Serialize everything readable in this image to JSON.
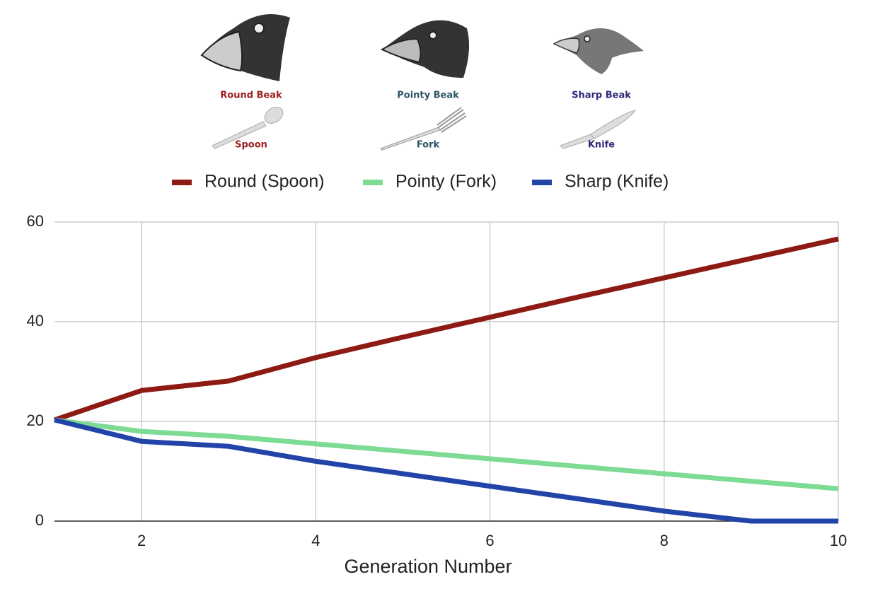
{
  "illustrations": [
    {
      "beak": "Round Beak",
      "utensil": "Spoon",
      "color": "#9b2020"
    },
    {
      "beak": "Pointy Beak",
      "utensil": "Fork",
      "color": "#2c5566"
    },
    {
      "beak": "Sharp Beak",
      "utensil": "Knife",
      "color": "#2e2a78"
    }
  ],
  "chart_data": {
    "type": "line",
    "x_label": "Generation Number",
    "x": [
      1,
      2,
      3,
      4,
      5,
      6,
      7,
      8,
      9,
      10
    ],
    "series": [
      {
        "name": "Round (Spoon)",
        "color": "#8e1a14",
        "values": [
          20.3,
          26.2,
          28.1,
          32.8,
          36.9,
          40.9,
          44.9,
          48.8,
          52.7,
          56.6
        ]
      },
      {
        "name": "Pointy (Fork)",
        "color": "#7ddb94",
        "values": [
          20.3,
          18,
          17,
          15.5,
          14,
          12.5,
          11,
          9.5,
          8,
          6.5
        ]
      },
      {
        "name": "Sharp (Knife)",
        "color": "#2244a8",
        "values": [
          20.3,
          16,
          15,
          12,
          9.5,
          7,
          4.5,
          2,
          0,
          0
        ]
      }
    ],
    "xlim": [
      1,
      10
    ],
    "xticks": [
      2,
      4,
      6,
      8,
      10
    ],
    "ylim": [
      0,
      60
    ],
    "yticks": [
      0,
      20,
      40,
      60
    ],
    "grid": true,
    "legend": "top"
  }
}
